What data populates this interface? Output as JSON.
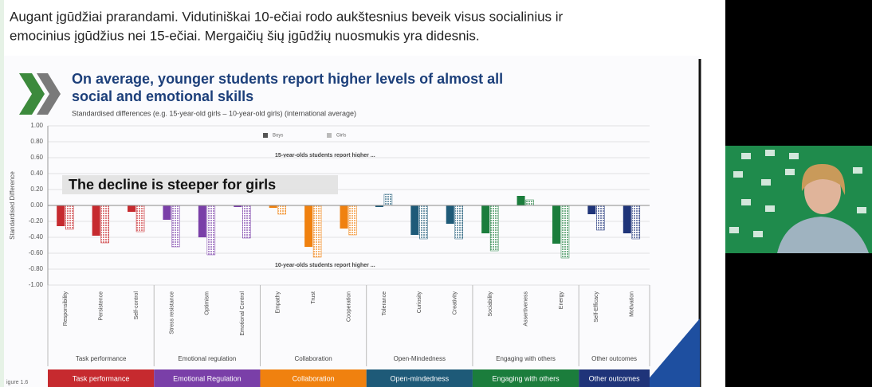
{
  "caption": [
    "Augant įgūdžiai prarandami. Vidutiniškai 10-ečiai rodo aukštesnius beveik visus socialinius ir",
    "emocinius įgūdžius nei 15-ečiai. Mergaičių šių įgūdžių nuosmukis yra didesnis."
  ],
  "footnote": "igure 1.6",
  "chart_data": {
    "type": "bar",
    "title": [
      "On average, younger students report higher levels of almost all",
      "social and emotional skills"
    ],
    "subtitle": "Standardised differences (e.g. 15-year-old girls – 10-year-old girls) (international average)",
    "ylabel": "Standardised Difference",
    "annotations": [
      "15-year-olds students report higher ...",
      "10-year-olds students report higher ...",
      "The decline is steeper for girls"
    ],
    "groups": [
      {
        "label": "Task performance",
        "banner": "Task performance",
        "color": "#c62a2f",
        "categories": [
          "Responsibility",
          "Persistence",
          "Self-control"
        ]
      },
      {
        "label": "Emotional regulation",
        "banner": "Emotional Regulation",
        "color": "#7a3fa8",
        "categories": [
          "Stress resistance",
          "Optimism",
          "Emotional Control"
        ]
      },
      {
        "label": "Collaboration",
        "banner": "Collaboration",
        "color": "#f0810f",
        "categories": [
          "Empathy",
          "Trust",
          "Cooperation"
        ]
      },
      {
        "label": "Open-Mindedness",
        "banner": "Open-mindedness",
        "color": "#1e5a78",
        "categories": [
          "Tolerance",
          "Curiosity",
          "Creativity"
        ]
      },
      {
        "label": "Engaging with others",
        "banner": "Engaging with others",
        "color": "#1b7d3c",
        "categories": [
          "Sociability",
          "Assertiveness",
          "Energy"
        ]
      },
      {
        "label": "Other outcomes",
        "banner": "Other outcomes",
        "color": "#1f3479",
        "categories": [
          "Self-Efficacy",
          "Motivation"
        ]
      }
    ],
    "series": [
      {
        "name": "Boys",
        "color": "#555555",
        "values": [
          -0.26,
          -0.38,
          -0.08,
          -0.18,
          -0.4,
          -0.02,
          -0.03,
          -0.52,
          -0.29,
          -0.02,
          -0.37,
          -0.23,
          -0.35,
          0.12,
          -0.48,
          -0.11,
          -0.35
        ]
      },
      {
        "name": "Girls",
        "color": "#bbbbbb",
        "values": [
          -0.3,
          -0.47,
          -0.33,
          -0.52,
          -0.62,
          -0.41,
          -0.11,
          -0.65,
          -0.37,
          0.14,
          -0.42,
          -0.42,
          -0.57,
          0.07,
          -0.66,
          -0.31,
          -0.42
        ]
      }
    ],
    "ylim": [
      -1,
      1
    ],
    "yticks": [
      {
        "value": 1,
        "label": "1.00"
      },
      {
        "value": 0.8,
        "label": "0.80"
      },
      {
        "value": 0.6,
        "label": "0.60"
      },
      {
        "value": 0.4,
        "label": "0.40"
      },
      {
        "value": 0.2,
        "label": "0.20"
      },
      {
        "value": 0,
        "label": "0.00"
      },
      {
        "value": -0.2,
        "label": "-0.20"
      },
      {
        "value": -0.4,
        "label": "-0.40"
      },
      {
        "value": -0.6,
        "label": "-0.60"
      },
      {
        "value": -0.8,
        "label": "-0.80"
      },
      {
        "value": -1,
        "label": "-1.00"
      }
    ],
    "grid": true
  }
}
